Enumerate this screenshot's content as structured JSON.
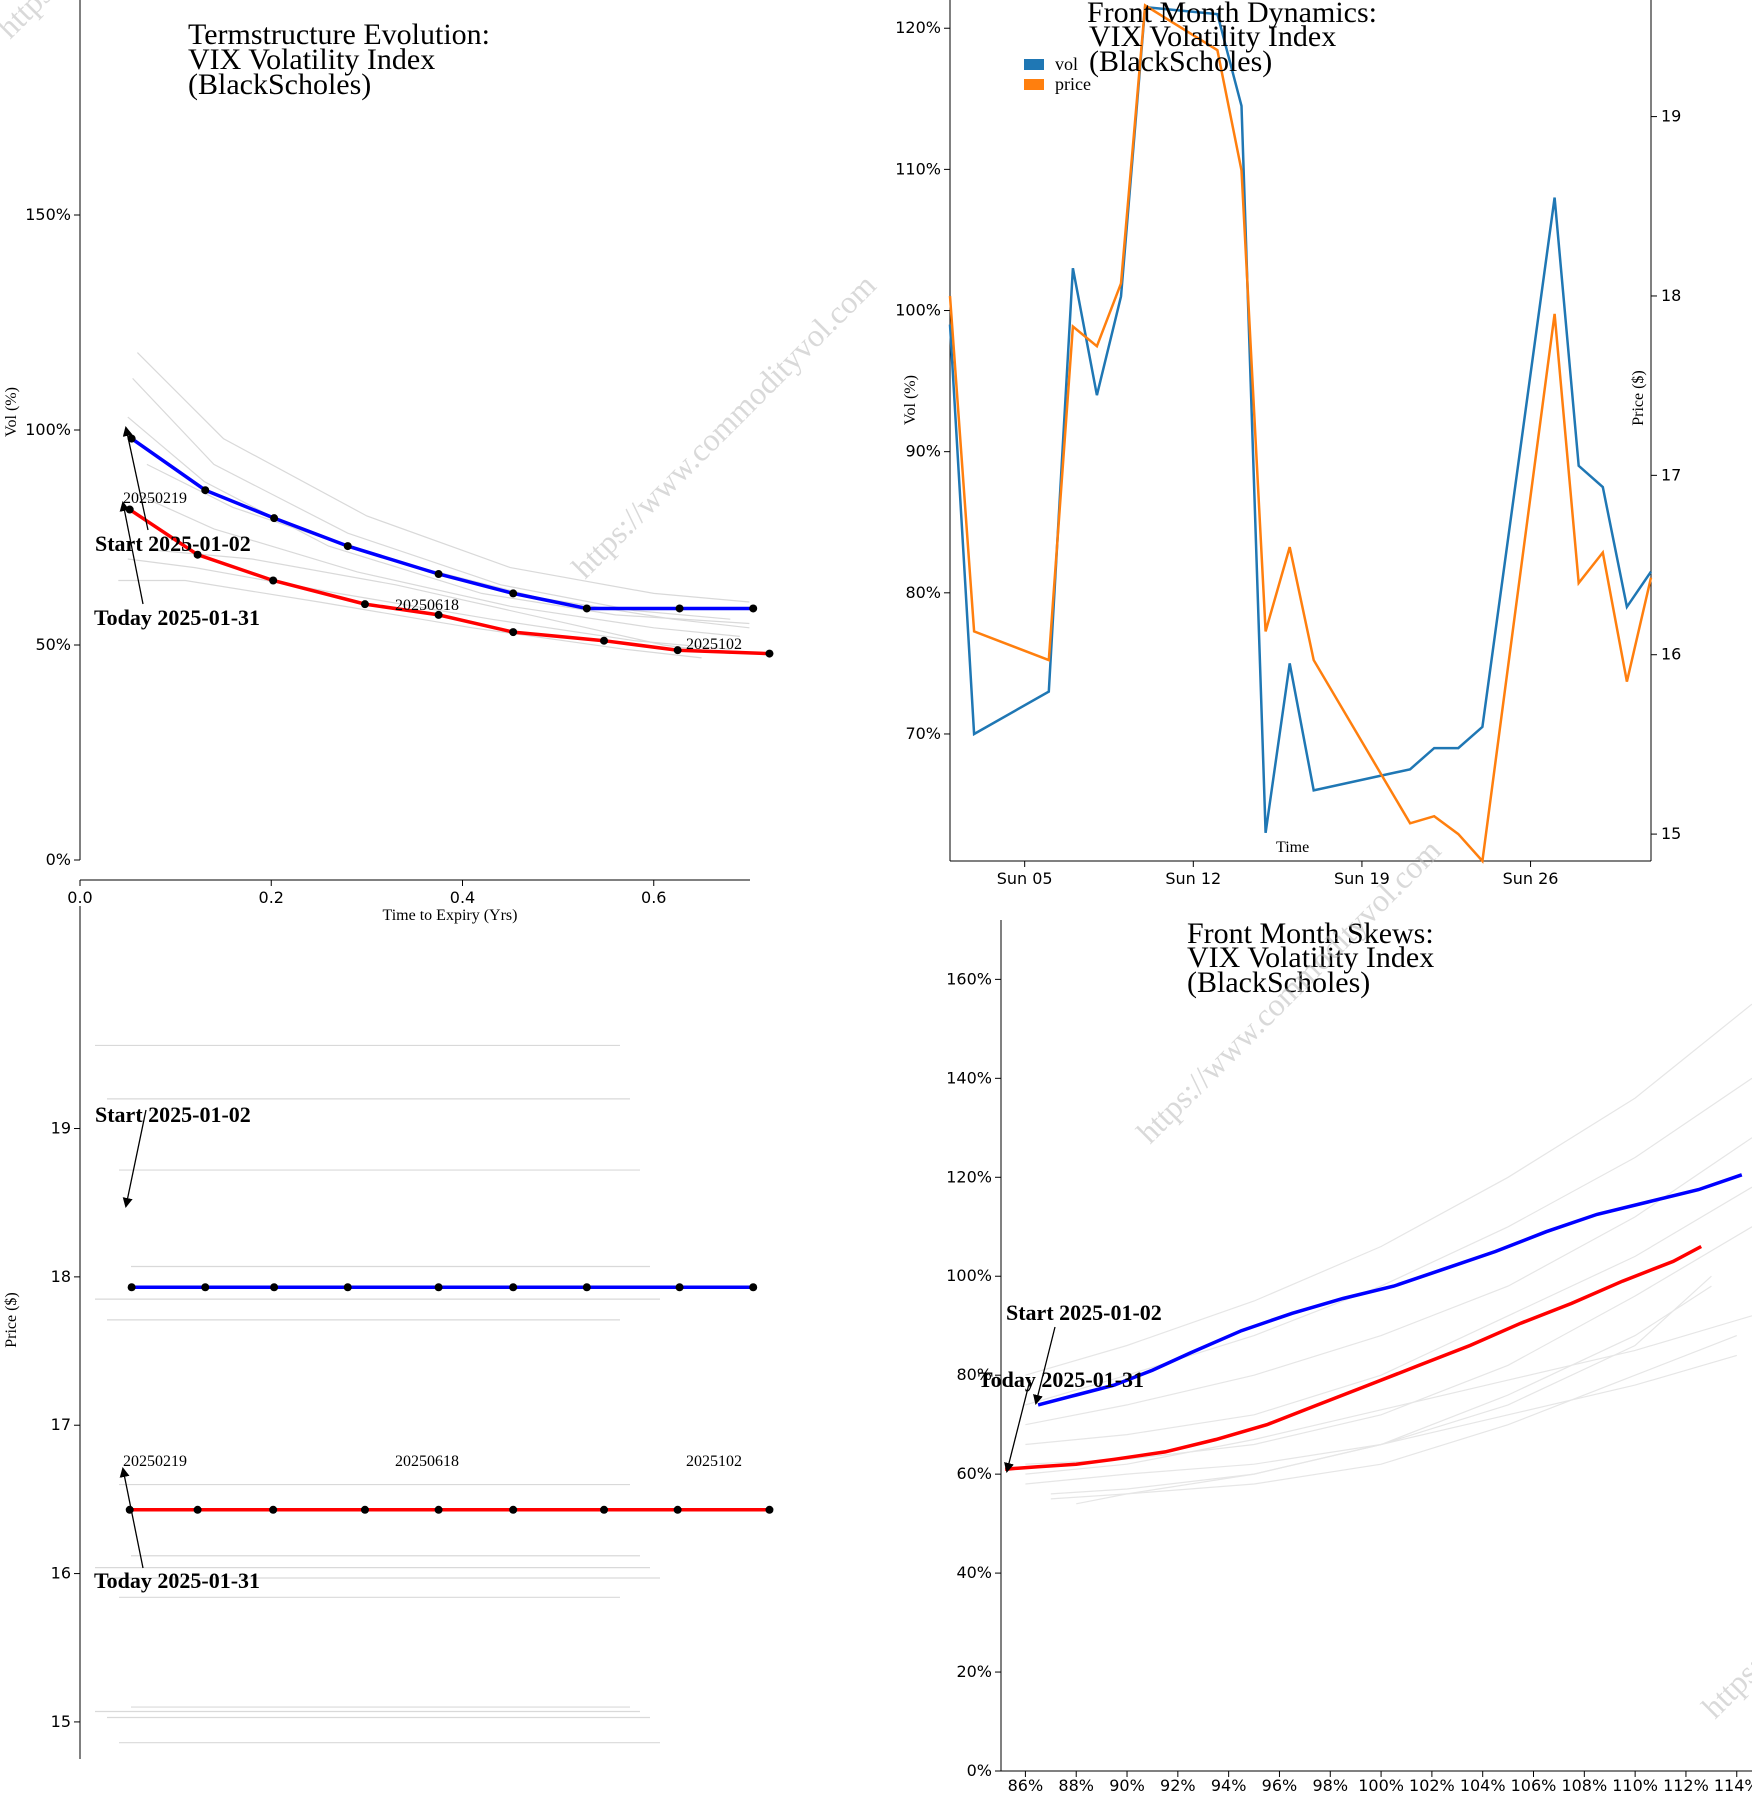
{
  "colors": {
    "start": "#0000ff",
    "today": "#ff0000",
    "history": "#d9d9d9",
    "vol": "#1f77b4",
    "price": "#ff7f0e"
  },
  "watermark": "https://www.commodityvol.com",
  "chart_data": [
    {
      "id": "term",
      "type": "line",
      "title": [
        "Termstructure Evolution:",
        "VIX Volatility Index",
        "(BlackScholes)"
      ],
      "xlabel": "Time to Expiry (Yrs)",
      "ylabel": "Vol (%)",
      "xlim": [
        0,
        0.8
      ],
      "ylim": [
        0,
        200
      ],
      "xticks": [
        0,
        0.2,
        0.4,
        0.6
      ],
      "xtick_labels": [
        "0.0",
        "0.2",
        "0.4",
        "0.6"
      ],
      "yticks": [
        0,
        50,
        100,
        150
      ],
      "ytick_labels": [
        "0%",
        "50%",
        "100%",
        "150%"
      ],
      "series": [
        {
          "role": "start",
          "x": [
            0.054,
            0.131,
            0.203,
            0.28,
            0.375,
            0.453,
            0.53,
            0.627,
            0.704
          ],
          "y": [
            98,
            86,
            79.5,
            73,
            66.5,
            62,
            58.5,
            58.5,
            58.5
          ]
        },
        {
          "role": "today",
          "x": [
            0.052,
            0.123,
            0.202,
            0.298,
            0.375,
            0.453,
            0.548,
            0.625,
            0.721
          ],
          "y": [
            81.5,
            71,
            65,
            59.5,
            57,
            53,
            51,
            48.8,
            48
          ]
        }
      ],
      "history": [
        {
          "x": [
            0.06,
            0.15,
            0.3,
            0.45,
            0.6,
            0.7
          ],
          "y": [
            118,
            98,
            80,
            68,
            62,
            60
          ]
        },
        {
          "x": [
            0.055,
            0.14,
            0.28,
            0.44,
            0.58,
            0.68
          ],
          "y": [
            112,
            92,
            76,
            64,
            58,
            56
          ]
        },
        {
          "x": [
            0.05,
            0.13,
            0.26,
            0.42,
            0.56,
            0.7
          ],
          "y": [
            103,
            88,
            73,
            62,
            57,
            55
          ]
        },
        {
          "x": [
            0.07,
            0.16,
            0.32,
            0.48,
            0.62,
            0.7
          ],
          "y": [
            92,
            82,
            70,
            61,
            56,
            54
          ]
        },
        {
          "x": [
            0.06,
            0.14,
            0.29,
            0.45,
            0.6,
            0.69
          ],
          "y": [
            85,
            77,
            67,
            59,
            54,
            52
          ]
        },
        {
          "x": [
            0.05,
            0.12,
            0.27,
            0.43,
            0.58,
            0.68
          ],
          "y": [
            70,
            68,
            62,
            56,
            51,
            49
          ]
        },
        {
          "x": [
            0.04,
            0.11,
            0.25,
            0.41,
            0.57,
            0.65
          ],
          "y": [
            65,
            65,
            60,
            54,
            49,
            47
          ]
        },
        {
          "x": [
            0.08,
            0.18,
            0.33,
            0.49,
            0.61,
            0.68
          ],
          "y": [
            72,
            70,
            64,
            56,
            50,
            48
          ]
        }
      ],
      "annotations": {
        "start": "Start 2025-01-02",
        "today": "Today 2025-01-31",
        "expiries": [
          "20250219",
          "20250618",
          "2025102"
        ]
      }
    },
    {
      "id": "price_term",
      "type": "line",
      "ylabel": "Price ($)",
      "xlim": [
        0,
        0.8
      ],
      "ylim": [
        14.75,
        20.5
      ],
      "yticks": [
        15,
        16,
        17,
        18,
        19
      ],
      "ytick_labels": [
        "15",
        "16",
        "17",
        "18",
        "19"
      ],
      "series": [
        {
          "role": "start",
          "x": [
            0.054,
            0.131,
            0.203,
            0.28,
            0.375,
            0.453,
            0.53,
            0.627,
            0.704
          ],
          "y": [
            17.93,
            17.93,
            17.93,
            17.93,
            17.93,
            17.93,
            17.93,
            17.93,
            17.93
          ]
        },
        {
          "role": "today",
          "x": [
            0.052,
            0.123,
            0.202,
            0.298,
            0.375,
            0.453,
            0.548,
            0.625,
            0.721
          ],
          "y": [
            16.43,
            16.43,
            16.43,
            16.43,
            16.43,
            16.43,
            16.43,
            16.43,
            16.43
          ]
        }
      ],
      "history": [
        19.56,
        19.2,
        18.72,
        18.07,
        17.85,
        17.71,
        16.6,
        16.12,
        16.04,
        15.97,
        15.84,
        15.1,
        15.07,
        15.03,
        14.86
      ],
      "annotations": {
        "start": "Start 2025-01-02",
        "today": "Today 2025-01-31",
        "expiries": [
          "20250219",
          "20250618",
          "2025102"
        ]
      }
    },
    {
      "id": "dynamics",
      "type": "line",
      "title": [
        "Front Month Dynamics:",
        "VIX Volatility Index",
        "(BlackScholes)"
      ],
      "xlabel": "Time",
      "ylabel": "Vol (%)",
      "ylabel_right": "Price ($)",
      "xlim": [
        1.9,
        31.0
      ],
      "ylim": [
        61,
        122
      ],
      "ylim_right": [
        14.85,
        19.65
      ],
      "xticks": [
        5,
        12,
        19,
        26
      ],
      "xtick_labels": [
        "Sun 05",
        "Sun 12",
        "Sun 19",
        "Sun 26"
      ],
      "yticks": [
        70,
        80,
        90,
        100,
        110,
        120
      ],
      "ytick_labels": [
        "70%",
        "80%",
        "90%",
        "100%",
        "110%",
        "120%"
      ],
      "yticks_right": [
        15,
        16,
        17,
        18,
        19
      ],
      "ytick_labels_right": [
        "15",
        "16",
        "17",
        "18",
        "19"
      ],
      "legend": [
        "vol",
        "price"
      ],
      "x": [
        1.9,
        2.9,
        6.0,
        7.0,
        8.0,
        9.0,
        10.0,
        13.0,
        14.0,
        15.0,
        16.0,
        17.0,
        21.0,
        22.0,
        23.0,
        24.0,
        27.0,
        28.0,
        29.0,
        30.0,
        31.0
      ],
      "series": [
        {
          "name": "vol",
          "axis": "left",
          "values": [
            99,
            70,
            73,
            103,
            94,
            101,
            121.5,
            121,
            114.5,
            63,
            75,
            66,
            67.5,
            69,
            69,
            70.5,
            108,
            89,
            87.5,
            79,
            81.5
          ]
        },
        {
          "name": "price",
          "axis": "right",
          "values": [
            18.0,
            16.13,
            15.97,
            17.83,
            17.72,
            18.07,
            19.62,
            19.37,
            18.7,
            16.13,
            16.6,
            15.97,
            15.06,
            15.1,
            15.0,
            14.85,
            17.9,
            16.4,
            16.57,
            15.85,
            16.43
          ]
        }
      ]
    },
    {
      "id": "skew",
      "type": "line",
      "title": [
        "Front Month Skews:",
        "VIX Volatility Index",
        "(BlackScholes)"
      ],
      "xlim": [
        85,
        114.6
      ],
      "ylim": [
        0,
        172
      ],
      "xticks": [
        86,
        88,
        90,
        92,
        94,
        96,
        98,
        100,
        102,
        104,
        106,
        108,
        110,
        112,
        114
      ],
      "xtick_labels": [
        "86%",
        "88%",
        "90%",
        "92%",
        "94%",
        "96%",
        "98%",
        "100%",
        "102%",
        "104%",
        "106%",
        "108%",
        "110%",
        "112%",
        "114%"
      ],
      "yticks": [
        0,
        20,
        40,
        60,
        80,
        100,
        120,
        140,
        160
      ],
      "ytick_labels": [
        "0%",
        "20%",
        "40%",
        "60%",
        "80%",
        "100%",
        "120%",
        "140%",
        "160%"
      ],
      "series": [
        {
          "role": "start",
          "x": [
            86.5,
            88,
            89.5,
            91,
            92.5,
            94.5,
            96.5,
            98.5,
            100.5,
            102.5,
            104.5,
            106.5,
            108.5,
            110.5,
            112.5,
            114.2
          ],
          "y": [
            74,
            76,
            78,
            81,
            84.5,
            89,
            92.5,
            95.5,
            98,
            101.5,
            105,
            109,
            112.5,
            115,
            117.5,
            120.5
          ]
        },
        {
          "role": "today",
          "x": [
            85.2,
            86.5,
            88,
            89.5,
            91.5,
            93.5,
            95.5,
            97.5,
            99.5,
            101.5,
            103.5,
            105.5,
            107.5,
            109.5,
            111.5,
            112.6
          ],
          "y": [
            61,
            61.5,
            62,
            63,
            64.5,
            67,
            70,
            74,
            78,
            82,
            86,
            90.5,
            94.5,
            99,
            103,
            106
          ]
        }
      ],
      "history": [
        {
          "x": [
            86,
            90,
            95,
            100,
            105,
            110,
            114.6
          ],
          "y": [
            80,
            86,
            95,
            106,
            120,
            136,
            155
          ]
        },
        {
          "x": [
            86,
            90,
            95,
            100,
            105,
            110,
            114.6
          ],
          "y": [
            74,
            80,
            88,
            98,
            110,
            124,
            140
          ]
        },
        {
          "x": [
            86,
            90,
            95,
            100,
            105,
            110,
            114.6
          ],
          "y": [
            70,
            74,
            80,
            88,
            98,
            112,
            128
          ]
        },
        {
          "x": [
            86,
            90,
            95,
            100,
            105,
            110,
            114.6
          ],
          "y": [
            66,
            68,
            72,
            80,
            92,
            104,
            118
          ]
        },
        {
          "x": [
            86,
            90,
            95,
            100,
            105,
            110,
            114.6
          ],
          "y": [
            62,
            63,
            66,
            72,
            82,
            96,
            110
          ]
        },
        {
          "x": [
            86,
            90,
            95,
            100,
            105,
            110,
            113
          ],
          "y": [
            58,
            60,
            62,
            66,
            74,
            86,
            100
          ]
        },
        {
          "x": [
            87,
            90,
            95,
            100,
            105,
            110,
            113
          ],
          "y": [
            56,
            57,
            60,
            66,
            76,
            88,
            98
          ]
        },
        {
          "x": [
            87,
            90,
            95,
            100,
            105,
            110,
            114
          ],
          "y": [
            55,
            56,
            58,
            62,
            70,
            80,
            88
          ]
        },
        {
          "x": [
            88,
            90,
            95,
            100,
            105,
            110,
            114
          ],
          "y": [
            54,
            56,
            60,
            66,
            72,
            78,
            84
          ]
        },
        {
          "x": [
            86,
            90,
            95,
            100,
            105,
            110,
            114.6
          ],
          "y": [
            60,
            62,
            67,
            73,
            79,
            85,
            92
          ]
        }
      ],
      "annotations": {
        "start": "Start 2025-01-02",
        "today": "Today 2025-01-31"
      }
    }
  ]
}
